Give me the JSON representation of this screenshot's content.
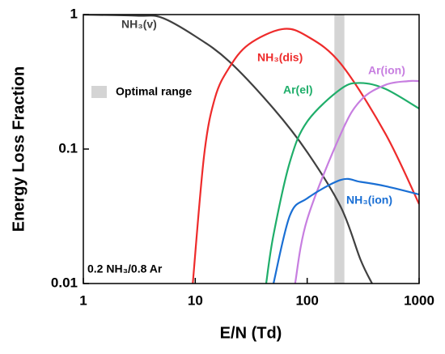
{
  "chart_data": {
    "type": "line",
    "xlabel": "E/N (Td)",
    "ylabel": "Energy Loss Fraction",
    "xscale": "log",
    "yscale": "log",
    "xlim": [
      1,
      1000
    ],
    "ylim": [
      0.01,
      1
    ],
    "xticks": [
      1,
      10,
      100,
      1000
    ],
    "yticks": [
      0.01,
      0.1,
      1
    ],
    "annotation": "0.2 NH₃/0.8 Ar",
    "shaded_range": {
      "label": "Optimal range",
      "x": [
        175,
        215
      ],
      "color": "#d4d4d4"
    },
    "series": [
      {
        "name": "NH₃(v)",
        "color": "#404040",
        "x": [
          1,
          3,
          5,
          10,
          20,
          50,
          100,
          200,
          300,
          380
        ],
        "values": [
          1,
          0.98,
          0.95,
          0.69,
          0.45,
          0.2,
          0.095,
          0.037,
          0.015,
          0.01
        ]
      },
      {
        "name": "NH₃(dis)",
        "color": "#ee2b2b",
        "x": [
          9.5,
          12,
          15,
          20,
          30,
          60,
          100,
          200,
          500,
          1000
        ],
        "values": [
          0.01,
          0.09,
          0.24,
          0.4,
          0.6,
          0.78,
          0.69,
          0.43,
          0.13,
          0.039
        ]
      },
      {
        "name": "Ar(el)",
        "color": "#1fae6a",
        "x": [
          43,
          50,
          70,
          100,
          200,
          300,
          500,
          1000
        ],
        "values": [
          0.01,
          0.023,
          0.08,
          0.16,
          0.28,
          0.31,
          0.28,
          0.2
        ]
      },
      {
        "name": "Ar(ion)",
        "color": "#c77ee0",
        "x": [
          78,
          100,
          200,
          300,
          500,
          800,
          1000
        ],
        "values": [
          0.01,
          0.03,
          0.13,
          0.23,
          0.3,
          0.32,
          0.32
        ]
      },
      {
        "name": "NH₃(ion)",
        "color": "#1a6fd4",
        "x": [
          50,
          70,
          100,
          200,
          300,
          500,
          1000
        ],
        "values": [
          0.01,
          0.032,
          0.043,
          0.059,
          0.057,
          0.053,
          0.046
        ]
      }
    ]
  }
}
